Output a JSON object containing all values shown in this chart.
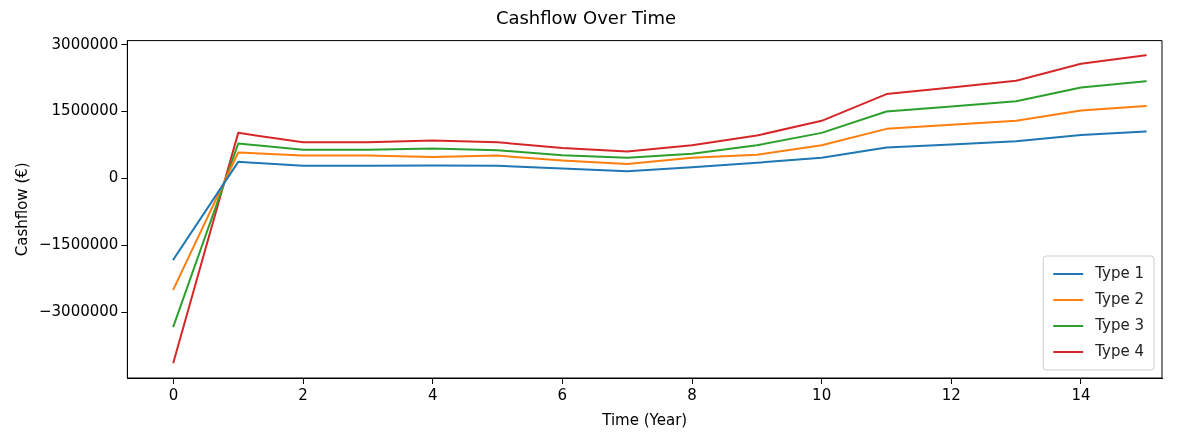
{
  "chart_data": {
    "type": "line",
    "title": "Cashflow Over Time",
    "xlabel": "Time (Year)",
    "ylabel": "Cashflow (€)",
    "x": [
      0,
      1,
      2,
      3,
      4,
      5,
      6,
      7,
      8,
      9,
      10,
      11,
      12,
      13,
      14,
      15
    ],
    "series": [
      {
        "name": "Type 1",
        "color": "#1f77b4",
        "values": [
          -1820000,
          370000,
          280000,
          280000,
          290000,
          280000,
          220000,
          160000,
          250000,
          350000,
          460000,
          690000,
          760000,
          830000,
          970000,
          1050000
        ]
      },
      {
        "name": "Type 2",
        "color": "#ff7f0e",
        "values": [
          -2490000,
          580000,
          510000,
          510000,
          480000,
          510000,
          400000,
          320000,
          460000,
          530000,
          740000,
          1110000,
          1200000,
          1290000,
          1520000,
          1620000
        ]
      },
      {
        "name": "Type 3",
        "color": "#2ca02c",
        "values": [
          -3320000,
          780000,
          640000,
          640000,
          670000,
          630000,
          520000,
          460000,
          550000,
          740000,
          1020000,
          1500000,
          1610000,
          1730000,
          2040000,
          2180000
        ]
      },
      {
        "name": "Type 4",
        "color": "#d62728",
        "values": [
          -4130000,
          1020000,
          810000,
          810000,
          850000,
          810000,
          680000,
          600000,
          740000,
          960000,
          1290000,
          1890000,
          2040000,
          2190000,
          2570000,
          2760000
        ]
      }
    ],
    "xlim": [
      -0.71,
      15.25
    ],
    "xticks": [
      0,
      2,
      4,
      6,
      8,
      10,
      12,
      14
    ],
    "ylim": [
      -4480000,
      3090000
    ],
    "yticks": [
      -3000000,
      -1500000,
      0,
      1500000,
      3000000
    ],
    "grid": false,
    "legend": "bottom right",
    "marker": "none",
    "line_style": "solid"
  }
}
